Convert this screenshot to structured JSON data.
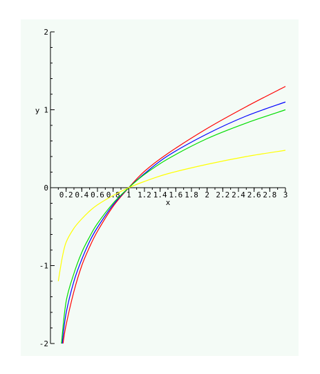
{
  "chart_data": {
    "type": "line",
    "title": "",
    "xlabel": "x",
    "ylabel": "y",
    "xlim": [
      0,
      3
    ],
    "ylim": [
      -2,
      2
    ],
    "grid": false,
    "legend": "none",
    "x_ticks": [
      {
        "value": 0.2,
        "label": "0.2"
      },
      {
        "value": 0.4,
        "label": "0.4"
      },
      {
        "value": 0.6,
        "label": "0.6"
      },
      {
        "value": 0.8,
        "label": "0.8"
      },
      {
        "value": 1.0,
        "label": "1"
      },
      {
        "value": 1.2,
        "label": "1.2"
      },
      {
        "value": 1.4,
        "label": "1.4"
      },
      {
        "value": 1.6,
        "label": "1.6"
      },
      {
        "value": 1.8,
        "label": "1.8"
      },
      {
        "value": 2.0,
        "label": "2"
      },
      {
        "value": 2.2,
        "label": "2.2"
      },
      {
        "value": 2.4,
        "label": "2.4"
      },
      {
        "value": 2.6,
        "label": "2.6"
      },
      {
        "value": 2.8,
        "label": "2.8"
      },
      {
        "value": 3.0,
        "label": "3"
      }
    ],
    "y_ticks": [
      {
        "value": -2,
        "label": "-2"
      },
      {
        "value": -1,
        "label": "-1"
      },
      {
        "value": 0,
        "label": "0"
      },
      {
        "value": 1,
        "label": "1"
      },
      {
        "value": 2,
        "label": "2"
      }
    ],
    "series": [
      {
        "color": "#ff0000",
        "x": [
          0.16,
          0.2,
          0.3,
          0.4,
          0.5,
          0.6,
          0.8,
          1.0,
          1.2,
          1.5,
          2.0,
          2.5,
          3.0
        ],
        "values": [
          -2.0,
          -1.76,
          -1.33,
          -1.0,
          -0.76,
          -0.56,
          -0.24,
          0.0,
          0.21,
          0.44,
          0.76,
          1.04,
          1.3
        ]
      },
      {
        "color": "#0000ff",
        "x": [
          0.15,
          0.2,
          0.3,
          0.4,
          0.5,
          0.6,
          0.8,
          1.0,
          1.2,
          1.5,
          2.0,
          2.5,
          3.0
        ],
        "values": [
          -2.0,
          -1.61,
          -1.2,
          -0.92,
          -0.69,
          -0.51,
          -0.22,
          0.0,
          0.18,
          0.41,
          0.69,
          0.92,
          1.1
        ]
      },
      {
        "color": "#00dd00",
        "x": [
          0.14,
          0.2,
          0.3,
          0.4,
          0.5,
          0.6,
          0.8,
          1.0,
          1.2,
          1.5,
          2.0,
          2.5,
          3.0
        ],
        "values": [
          -2.0,
          -1.46,
          -1.1,
          -0.83,
          -0.63,
          -0.46,
          -0.2,
          0.0,
          0.17,
          0.37,
          0.63,
          0.83,
          1.0
        ]
      },
      {
        "color": "#ffff00",
        "x": [
          0.1,
          0.15,
          0.2,
          0.3,
          0.4,
          0.5,
          0.6,
          0.8,
          1.0,
          1.2,
          1.5,
          2.0,
          2.5,
          3.0
        ],
        "values": [
          -1.2,
          -0.9,
          -0.7,
          -0.52,
          -0.4,
          -0.3,
          -0.22,
          -0.1,
          0.0,
          0.08,
          0.18,
          0.3,
          0.4,
          0.48
        ]
      }
    ]
  }
}
